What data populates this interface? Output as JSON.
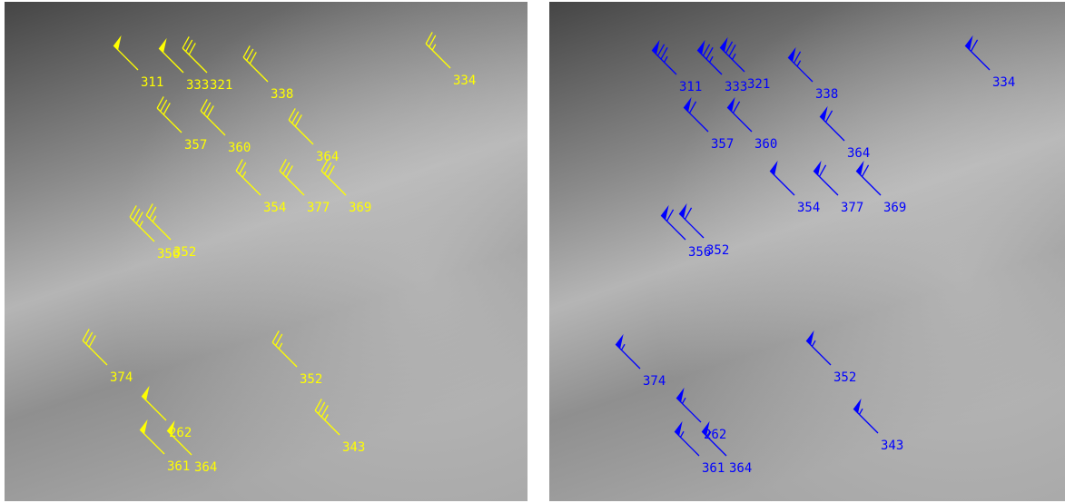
{
  "panels": [
    {
      "id": "left",
      "color": "#ffff00",
      "barbs": [
        {
          "label": "311",
          "speed": 50
        },
        {
          "label": "333",
          "speed": 50
        },
        {
          "label": "321",
          "speed": 30
        },
        {
          "label": "338",
          "speed": 30
        },
        {
          "label": "334",
          "speed": 25
        },
        {
          "label": "357",
          "speed": 30
        },
        {
          "label": "360",
          "speed": 30
        },
        {
          "label": "364",
          "speed": 30
        },
        {
          "label": "354",
          "speed": 25
        },
        {
          "label": "377",
          "speed": 30
        },
        {
          "label": "369",
          "speed": 30
        },
        {
          "label": "356",
          "speed": 35
        },
        {
          "label": "352",
          "speed": 25
        },
        {
          "label": "374",
          "speed": 30
        },
        {
          "label": "352",
          "speed": 25
        },
        {
          "label": "262",
          "speed": 50
        },
        {
          "label": "343",
          "speed": 35
        },
        {
          "label": "361",
          "speed": 50
        },
        {
          "label": "364",
          "speed": 50
        }
      ]
    },
    {
      "id": "right",
      "color": "#0000ff",
      "barbs": [
        {
          "label": "311",
          "speed": 75
        },
        {
          "label": "333",
          "speed": 75
        },
        {
          "label": "321",
          "speed": 75
        },
        {
          "label": "338",
          "speed": 65
        },
        {
          "label": "334",
          "speed": 60
        },
        {
          "label": "357",
          "speed": 60
        },
        {
          "label": "360",
          "speed": 60
        },
        {
          "label": "364",
          "speed": 60
        },
        {
          "label": "354",
          "speed": 50
        },
        {
          "label": "377",
          "speed": 60
        },
        {
          "label": "369",
          "speed": 60
        },
        {
          "label": "356",
          "speed": 60
        },
        {
          "label": "352",
          "speed": 60
        },
        {
          "label": "374",
          "speed": 55
        },
        {
          "label": "352",
          "speed": 55
        },
        {
          "label": "262",
          "speed": 55
        },
        {
          "label": "343",
          "speed": 55
        },
        {
          "label": "361",
          "speed": 55
        },
        {
          "label": "364",
          "speed": 55
        }
      ]
    }
  ]
}
